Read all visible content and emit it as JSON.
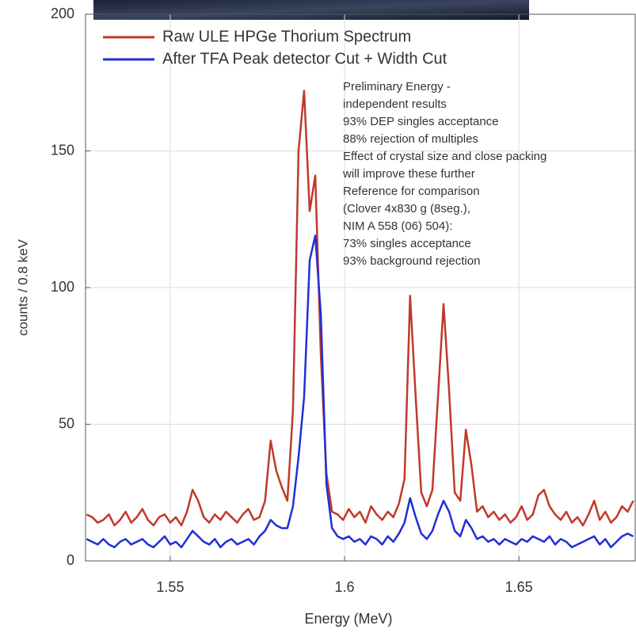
{
  "chart_data": {
    "type": "line",
    "xlabel": "Energy (MeV)",
    "ylabel": "counts / 0.8 keV",
    "xlim": [
      1.5257,
      1.6836
    ],
    "ylim": [
      0,
      200
    ],
    "xticks": [
      1.55,
      1.6,
      1.65
    ],
    "yticks": [
      0,
      50,
      100,
      150,
      200
    ],
    "grid": true,
    "legend": "upper left",
    "annotation": [
      "Preliminary Energy -",
      "independent results",
      "93% DEP singles acceptance",
      "88% rejection of multiples",
      "Effect of crystal size and close packing",
      "will improve these further",
      "Reference for comparison",
      "(Clover 4x830 g (8seg.),",
      "NIM A 558 (06) 504):",
      "73% singles acceptance",
      "93% background rejection"
    ],
    "x": [
      1.526,
      1.5276,
      1.5292,
      1.5308,
      1.5324,
      1.534,
      1.5356,
      1.5372,
      1.5388,
      1.5404,
      1.542,
      1.5436,
      1.5452,
      1.5468,
      1.5484,
      1.55,
      1.5516,
      1.5532,
      1.5548,
      1.5564,
      1.558,
      1.5596,
      1.5612,
      1.5628,
      1.5644,
      1.566,
      1.5676,
      1.5692,
      1.5708,
      1.5724,
      1.574,
      1.5756,
      1.5772,
      1.5788,
      1.5804,
      1.582,
      1.5836,
      1.5852,
      1.5868,
      1.5884,
      1.59,
      1.5916,
      1.5932,
      1.5948,
      1.5964,
      1.598,
      1.5996,
      1.6012,
      1.6028,
      1.6044,
      1.606,
      1.6076,
      1.6092,
      1.6108,
      1.6124,
      1.614,
      1.6156,
      1.6172,
      1.6188,
      1.6204,
      1.622,
      1.6236,
      1.6252,
      1.6268,
      1.6284,
      1.63,
      1.6316,
      1.6332,
      1.6348,
      1.6364,
      1.638,
      1.6396,
      1.6412,
      1.6428,
      1.6444,
      1.646,
      1.6476,
      1.6492,
      1.6508,
      1.6524,
      1.654,
      1.6556,
      1.6572,
      1.6588,
      1.6604,
      1.662,
      1.6636,
      1.6652,
      1.6668,
      1.6684,
      1.67,
      1.6716,
      1.6732,
      1.6748,
      1.6764,
      1.678,
      1.6796,
      1.6812,
      1.6828
    ],
    "series": [
      {
        "name": "Raw ULE HPGe Thorium Spectrum",
        "color": "#c0392b",
        "values": [
          17,
          16,
          14,
          15,
          17,
          13,
          15,
          18,
          14,
          16,
          19,
          15,
          13,
          16,
          17,
          14,
          16,
          13,
          18,
          26,
          22,
          16,
          14,
          17,
          15,
          18,
          16,
          14,
          17,
          19,
          15,
          16,
          22,
          44,
          33,
          27,
          22,
          55,
          150,
          172,
          128,
          141,
          75,
          32,
          18,
          17,
          15,
          19,
          16,
          18,
          14,
          20,
          17,
          15,
          18,
          16,
          21,
          30,
          97,
          60,
          25,
          20,
          26,
          60,
          94,
          62,
          25,
          22,
          48,
          35,
          18,
          20,
          16,
          18,
          15,
          17,
          14,
          16,
          20,
          15,
          17,
          24,
          26,
          20,
          17,
          15,
          18,
          14,
          16,
          13,
          17,
          22,
          15,
          18,
          14,
          16,
          20,
          18,
          22
        ]
      },
      {
        "name": "After TFA Peak detector Cut + Width Cut",
        "color": "#1f2fd6",
        "values": [
          8,
          7,
          6,
          8,
          6,
          5,
          7,
          8,
          6,
          7,
          8,
          6,
          5,
          7,
          9,
          6,
          7,
          5,
          8,
          11,
          9,
          7,
          6,
          8,
          5,
          7,
          8,
          6,
          7,
          8,
          6,
          9,
          11,
          15,
          13,
          12,
          12,
          20,
          38,
          60,
          110,
          119,
          90,
          28,
          12,
          9,
          8,
          9,
          7,
          8,
          6,
          9,
          8,
          6,
          9,
          7,
          10,
          14,
          23,
          16,
          10,
          8,
          11,
          17,
          22,
          18,
          11,
          9,
          15,
          12,
          8,
          9,
          7,
          8,
          6,
          8,
          7,
          6,
          8,
          7,
          9,
          8,
          7,
          9,
          6,
          8,
          7,
          5,
          6,
          7,
          8,
          9,
          6,
          8,
          5,
          7,
          9,
          10,
          9
        ]
      }
    ]
  }
}
